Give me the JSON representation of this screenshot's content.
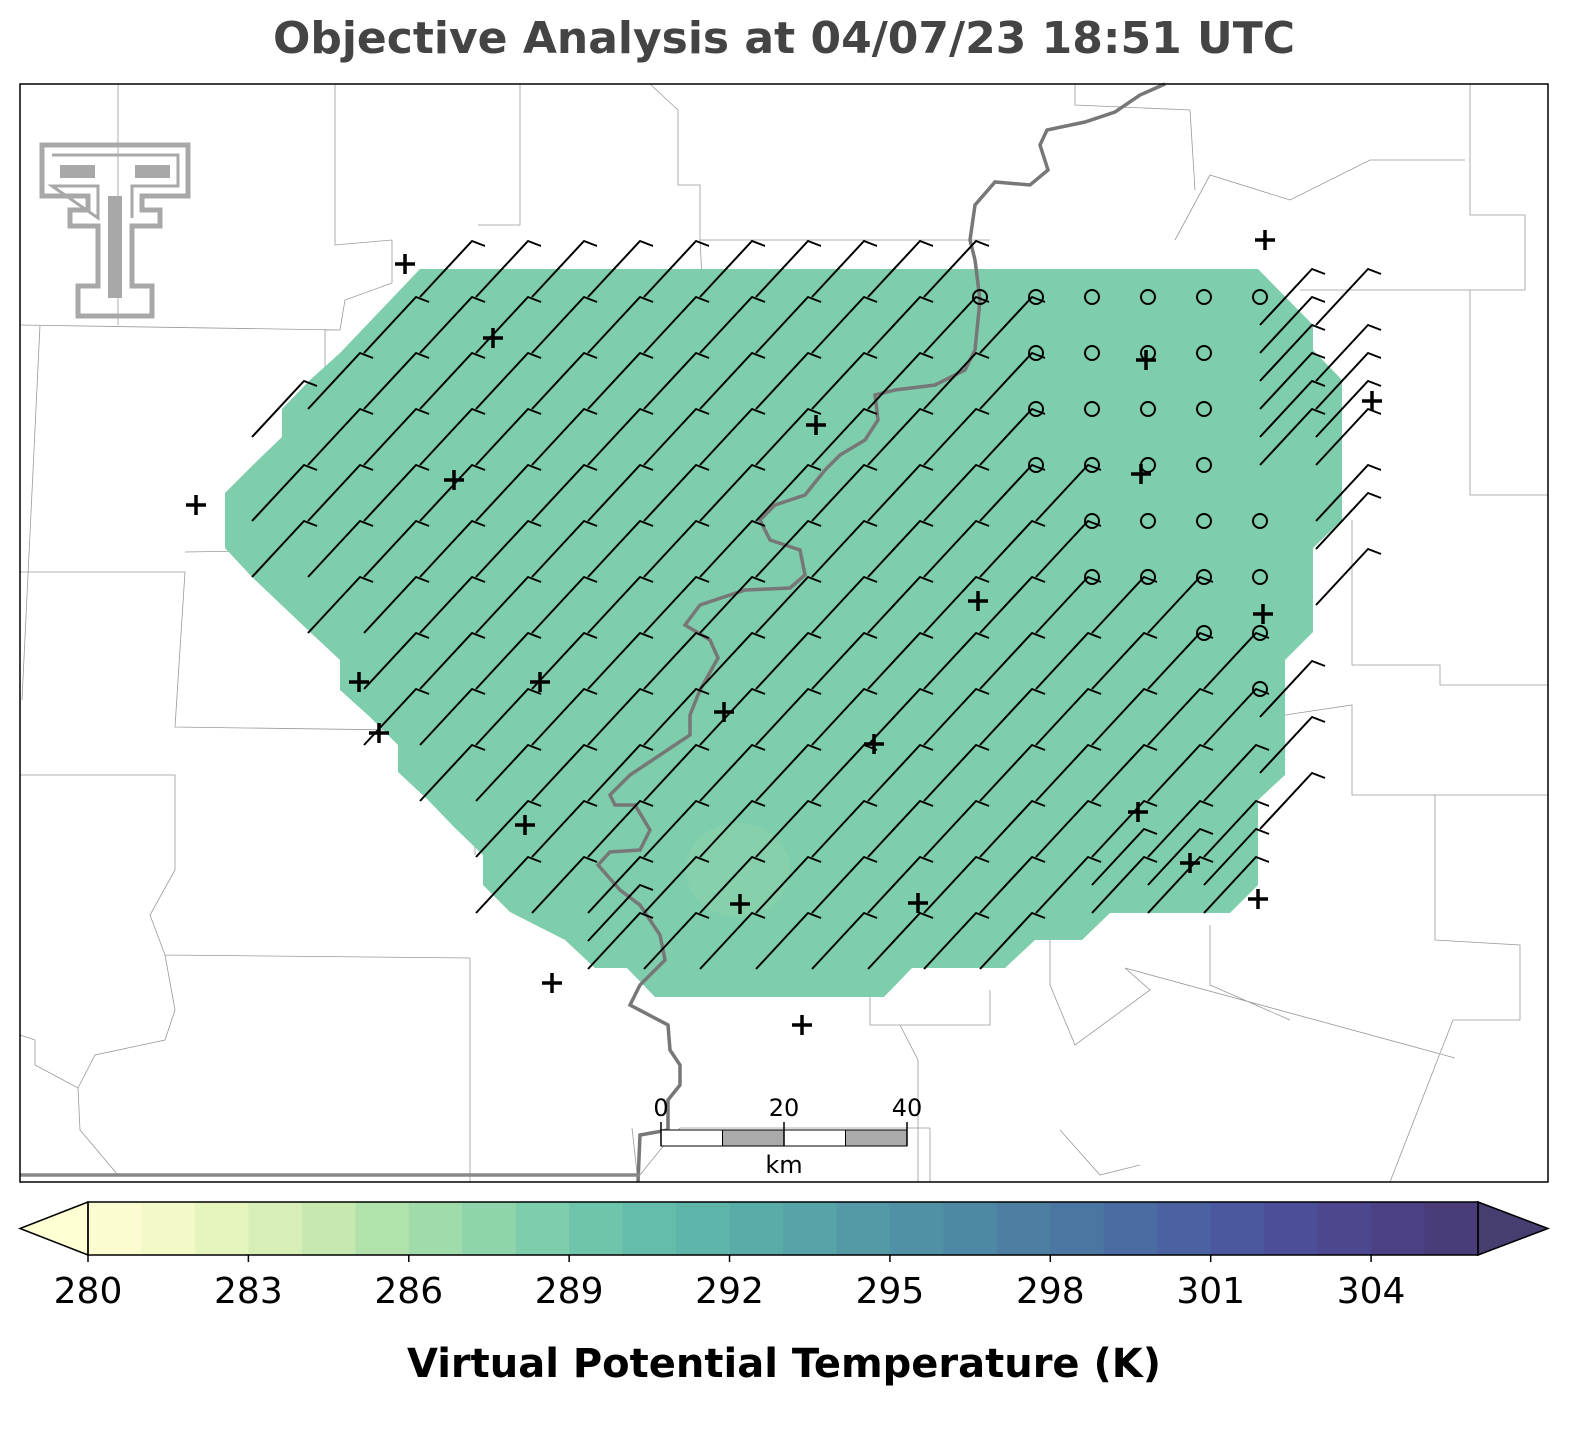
{
  "title": "Objective Analysis at 04/07/23 18:51 UTC",
  "colorbar": {
    "label": "Virtual Potential Temperature (K)",
    "range": [
      280,
      306
    ],
    "ticks": [
      280,
      283,
      286,
      289,
      292,
      295,
      298,
      301,
      304
    ],
    "colors": [
      "#fbfcd0",
      "#f3f9c7",
      "#e6f4be",
      "#d7efb7",
      "#c6e9b1",
      "#b2e2ac",
      "#a0dbab",
      "#8fd4aa",
      "#7ecdac",
      "#6fc5ab",
      "#64bdab",
      "#5eb5aa",
      "#5aaca9",
      "#56a3a8",
      "#539aa6",
      "#5191a5",
      "#4f88a4",
      "#4d7fa3",
      "#4b76a2",
      "#4a6ca2",
      "#4a62a1",
      "#4b589e",
      "#4c4e97",
      "#4c478e",
      "#4b4183",
      "#4a3c78"
    ],
    "under_color": "#ffffd4",
    "over_color": "#463d70"
  },
  "scale_bar": {
    "ticks": [
      0,
      20,
      40
    ],
    "unit": "km"
  }
}
